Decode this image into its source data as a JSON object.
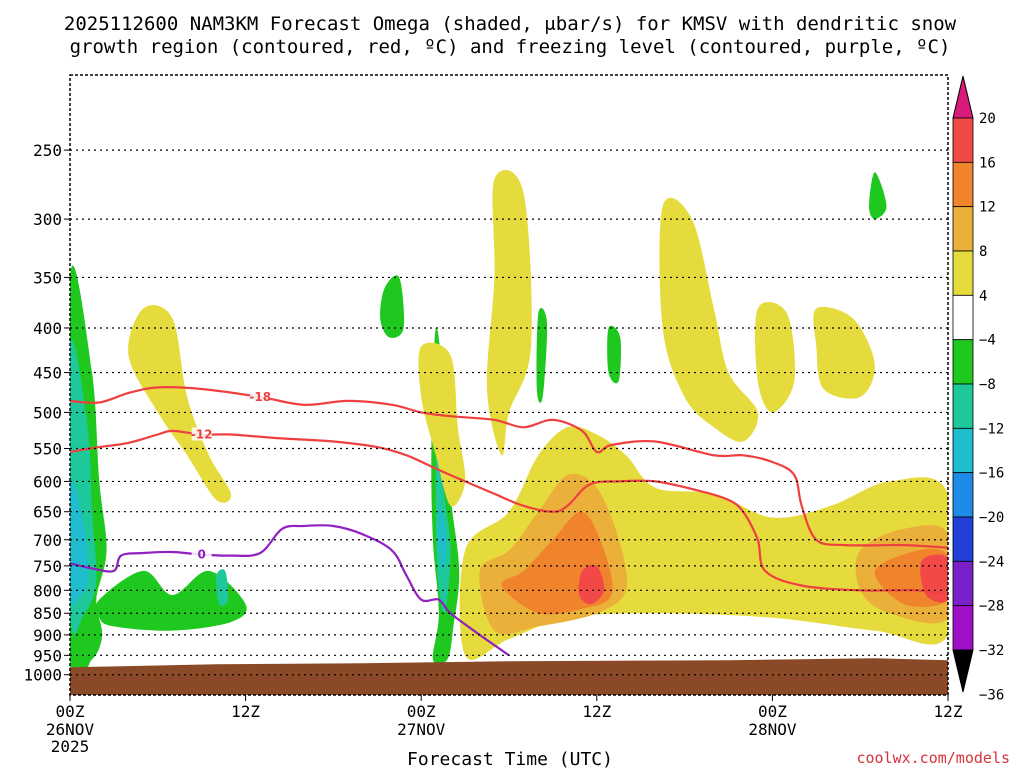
{
  "chart_data": {
    "type": "heatmap",
    "title": "2025112600 NAM3KM Forecast Omega (shaded, μbar/s) for KMSV with dendritic snow growth region (contoured, red, ºC) and freezing level (contoured, purple, ºC)",
    "title_lines": [
      "2025112600 NAM3KM Forecast Omega (shaded, μbar/s) for KMSV with dendritic snow",
      "growth region (contoured, red, ºC) and freezing level (contoured, purple, ºC)"
    ],
    "xlabel": "Forecast Time (UTC)",
    "ylabel": "",
    "credit": "coolwx.com/models",
    "x_range_hours": [
      0,
      60
    ],
    "y_range_hpa": [
      200,
      1050
    ],
    "x_ticks": [
      {
        "hour": 0,
        "label": "00Z",
        "sub": "26NOV",
        "sub2": "2025"
      },
      {
        "hour": 12,
        "label": "12Z",
        "sub": "",
        "sub2": ""
      },
      {
        "hour": 24,
        "label": "00Z",
        "sub": "27NOV",
        "sub2": ""
      },
      {
        "hour": 36,
        "label": "12Z",
        "sub": "",
        "sub2": ""
      },
      {
        "hour": 48,
        "label": "00Z",
        "sub": "28NOV",
        "sub2": ""
      },
      {
        "hour": 60,
        "label": "12Z",
        "sub": "",
        "sub2": ""
      }
    ],
    "y_ticks": [
      250,
      300,
      350,
      400,
      450,
      500,
      550,
      600,
      650,
      700,
      750,
      800,
      850,
      900,
      950,
      1000
    ],
    "colorbar": {
      "levels": [
        "20",
        "16",
        "12",
        "8",
        "4",
        "−4",
        "−8",
        "−12",
        "−16",
        "−20",
        "−24",
        "−28",
        "−32",
        "−36"
      ],
      "colors": [
        "#d81b7a",
        "#f24848",
        "#f0842c",
        "#eab03a",
        "#e6db3c",
        "#ffffff",
        "#1ec81e",
        "#1ec89a",
        "#1ebccd",
        "#1e8ce6",
        "#2040d8",
        "#7a20c8",
        "#a010c8",
        "#aaaaaa",
        "#000000"
      ]
    },
    "omega_regions": [
      {
        "name": "neg-left-outer",
        "color": "#1ec81e",
        "pts": [
          [
            0,
            350
          ],
          [
            1.5,
            450
          ],
          [
            2,
            600
          ],
          [
            2.5,
            720
          ],
          [
            1.8,
            820
          ],
          [
            2.2,
            900
          ],
          [
            1.5,
            960
          ],
          [
            0,
            960
          ]
        ]
      },
      {
        "name": "neg-left-mid",
        "color": "#1ec89a",
        "pts": [
          [
            0,
            420
          ],
          [
            1.2,
            520
          ],
          [
            1.5,
            650
          ],
          [
            1.8,
            780
          ],
          [
            1,
            850
          ],
          [
            0,
            850
          ]
        ]
      },
      {
        "name": "neg-left-inner",
        "color": "#1ebccd",
        "pts": [
          [
            0,
            600
          ],
          [
            1,
            680
          ],
          [
            1.2,
            780
          ],
          [
            0.5,
            820
          ],
          [
            0,
            810
          ]
        ]
      },
      {
        "name": "neg-low-band",
        "color": "#1ec81e",
        "pts": [
          [
            2,
            820
          ],
          [
            5,
            760
          ],
          [
            7,
            810
          ],
          [
            9.5,
            760
          ],
          [
            12,
            830
          ],
          [
            11,
            870
          ],
          [
            7,
            890
          ],
          [
            3,
            880
          ],
          [
            2,
            860
          ]
        ]
      },
      {
        "name": "neg-low-blob",
        "color": "#1ec89a",
        "pts": [
          [
            10,
            770
          ],
          [
            10.6,
            760
          ],
          [
            10.8,
            820
          ],
          [
            10.2,
            830
          ]
        ]
      },
      {
        "name": "neg-upper-blob",
        "color": "#1ec81e",
        "pts": [
          [
            21.5,
            360
          ],
          [
            22.5,
            350
          ],
          [
            22.8,
            400
          ],
          [
            21.8,
            410
          ],
          [
            21.2,
            390
          ]
        ]
      },
      {
        "name": "neg-col-27",
        "color": "#1ec81e",
        "pts": [
          [
            25,
            400
          ],
          [
            25.6,
            480
          ],
          [
            26,
            620
          ],
          [
            26.6,
            760
          ],
          [
            26.2,
            880
          ],
          [
            25.8,
            960
          ],
          [
            24.8,
            960
          ],
          [
            25.2,
            850
          ],
          [
            24.8,
            700
          ],
          [
            24.7,
            550
          ]
        ]
      },
      {
        "name": "neg-col-27-mid",
        "color": "#1ec89a",
        "pts": [
          [
            25.2,
            460
          ],
          [
            25.5,
            600
          ],
          [
            26,
            720
          ],
          [
            25.6,
            850
          ],
          [
            25.1,
            760
          ],
          [
            25,
            600
          ]
        ]
      },
      {
        "name": "neg-col-27-inner",
        "color": "#1ebccd",
        "pts": [
          [
            25.3,
            640
          ],
          [
            25.7,
            700
          ],
          [
            25.5,
            760
          ],
          [
            25.2,
            700
          ]
        ]
      },
      {
        "name": "neg-thin-32",
        "color": "#1ec81e",
        "pts": [
          [
            32,
            385
          ],
          [
            32.6,
            395
          ],
          [
            32.3,
            480
          ],
          [
            31.9,
            470
          ]
        ]
      },
      {
        "name": "neg-blob-37",
        "color": "#1ec81e",
        "pts": [
          [
            36.8,
            400
          ],
          [
            37.6,
            410
          ],
          [
            37.5,
            460
          ],
          [
            36.8,
            450
          ]
        ]
      },
      {
        "name": "neg-top-right",
        "color": "#1ec81e",
        "pts": [
          [
            55,
            265
          ],
          [
            55.8,
            290
          ],
          [
            55,
            300
          ],
          [
            54.6,
            290
          ]
        ]
      },
      {
        "name": "pos-upper-left",
        "color": "#e6db3c",
        "pts": [
          [
            5,
            380
          ],
          [
            7,
            390
          ],
          [
            8,
            480
          ],
          [
            9.5,
            560
          ],
          [
            11,
            620
          ],
          [
            10,
            630
          ],
          [
            8,
            560
          ],
          [
            6,
            500
          ],
          [
            4,
            430
          ]
        ]
      },
      {
        "name": "pos-col-27",
        "color": "#e6db3c",
        "pts": [
          [
            24,
            420
          ],
          [
            26,
            430
          ],
          [
            26.5,
            520
          ],
          [
            27,
            600
          ],
          [
            26,
            640
          ],
          [
            25,
            560
          ],
          [
            24,
            480
          ]
        ]
      },
      {
        "name": "pos-col-29",
        "color": "#e6db3c",
        "pts": [
          [
            29,
            270
          ],
          [
            31,
            280
          ],
          [
            31.5,
            420
          ],
          [
            30,
            500
          ],
          [
            29.5,
            560
          ],
          [
            28.5,
            470
          ],
          [
            29,
            350
          ]
        ]
      },
      {
        "name": "pos-col-41",
        "color": "#e6db3c",
        "pts": [
          [
            40.5,
            290
          ],
          [
            42.5,
            300
          ],
          [
            44,
            380
          ],
          [
            45,
            450
          ],
          [
            47,
            500
          ],
          [
            46,
            540
          ],
          [
            44,
            520
          ],
          [
            42,
            480
          ],
          [
            40.5,
            400
          ]
        ]
      },
      {
        "name": "pos-blob-48",
        "color": "#e6db3c",
        "pts": [
          [
            47,
            380
          ],
          [
            49,
            385
          ],
          [
            49.5,
            460
          ],
          [
            48,
            500
          ],
          [
            47,
            460
          ]
        ]
      },
      {
        "name": "pos-blob-52",
        "color": "#e6db3c",
        "pts": [
          [
            51,
            380
          ],
          [
            53.5,
            390
          ],
          [
            55,
            440
          ],
          [
            54,
            480
          ],
          [
            51.5,
            470
          ],
          [
            51,
            420
          ]
        ]
      },
      {
        "name": "pos-main-lower",
        "color": "#e6db3c",
        "pts": [
          [
            27,
            720
          ],
          [
            30,
            650
          ],
          [
            32,
            560
          ],
          [
            34,
            520
          ],
          [
            36,
            530
          ],
          [
            38,
            560
          ],
          [
            40,
            610
          ],
          [
            44,
            620
          ],
          [
            48,
            660
          ],
          [
            52,
            640
          ],
          [
            56,
            600
          ],
          [
            60,
            620
          ],
          [
            60,
            900
          ],
          [
            55,
            890
          ],
          [
            48,
            860
          ],
          [
            40,
            850
          ],
          [
            34,
            860
          ],
          [
            30,
            910
          ],
          [
            27,
            950
          ]
        ]
      },
      {
        "name": "pos-main-8",
        "color": "#eab03a",
        "pts": [
          [
            28,
            760
          ],
          [
            30,
            720
          ],
          [
            32,
            650
          ],
          [
            34,
            590
          ],
          [
            36,
            610
          ],
          [
            37.5,
            700
          ],
          [
            38,
            800
          ],
          [
            36,
            850
          ],
          [
            32,
            880
          ],
          [
            29,
            890
          ]
        ]
      },
      {
        "name": "pos-main-12",
        "color": "#f0842c",
        "pts": [
          [
            29.5,
            790
          ],
          [
            31,
            760
          ],
          [
            33,
            700
          ],
          [
            35,
            650
          ],
          [
            36.5,
            720
          ],
          [
            37,
            810
          ],
          [
            35,
            840
          ],
          [
            32,
            850
          ]
        ]
      },
      {
        "name": "pos-core-16",
        "color": "#f24848",
        "pts": [
          [
            35,
            760
          ],
          [
            36,
            750
          ],
          [
            36.5,
            800
          ],
          [
            35.6,
            830
          ],
          [
            34.8,
            810
          ]
        ]
      },
      {
        "name": "pos-right-8",
        "color": "#eab03a",
        "pts": [
          [
            54,
            720
          ],
          [
            57,
            680
          ],
          [
            60,
            690
          ],
          [
            60,
            860
          ],
          [
            56,
            850
          ],
          [
            54,
            800
          ]
        ]
      },
      {
        "name": "pos-right-12",
        "color": "#f0842c",
        "pts": [
          [
            55,
            760
          ],
          [
            58,
            720
          ],
          [
            60,
            730
          ],
          [
            60,
            820
          ],
          [
            57,
            830
          ]
        ]
      },
      {
        "name": "pos-right-16",
        "color": "#f24848",
        "pts": [
          [
            58.2,
            740
          ],
          [
            60,
            735
          ],
          [
            60,
            820
          ],
          [
            58.5,
            810
          ]
        ]
      },
      {
        "name": "pos-band-44",
        "color": "#e6db3c",
        "pts": [
          [
            42,
            700
          ],
          [
            48,
            690
          ],
          [
            52,
            720
          ],
          [
            50,
            760
          ],
          [
            44,
            760
          ]
        ]
      }
    ],
    "contours": [
      {
        "name": "isotherm-minus-18",
        "level": "-18",
        "color": "#ee4040",
        "label_at_index": 5,
        "pts": [
          [
            0,
            485
          ],
          [
            2,
            487
          ],
          [
            4,
            475
          ],
          [
            6,
            468
          ],
          [
            9,
            470
          ],
          [
            13,
            480
          ],
          [
            16,
            490
          ],
          [
            19,
            485
          ],
          [
            22,
            490
          ],
          [
            24,
            500
          ],
          [
            26,
            505
          ],
          [
            29,
            510
          ],
          [
            31,
            520
          ],
          [
            33,
            510
          ],
          [
            35,
            525
          ],
          [
            36,
            555
          ],
          [
            37,
            545
          ],
          [
            40,
            540
          ],
          [
            44,
            560
          ],
          [
            46,
            560
          ],
          [
            48,
            570
          ],
          [
            49.5,
            590
          ],
          [
            50,
            640
          ],
          [
            51,
            700
          ],
          [
            53,
            710
          ],
          [
            57,
            710
          ],
          [
            60,
            715
          ]
        ]
      },
      {
        "name": "isotherm-minus-12",
        "level": "-12",
        "color": "#ee4040",
        "label_at_index": 5,
        "pts": [
          [
            0,
            555
          ],
          [
            2,
            548
          ],
          [
            4,
            542
          ],
          [
            6,
            530
          ],
          [
            7,
            525
          ],
          [
            9,
            530
          ],
          [
            11,
            530
          ],
          [
            14,
            535
          ],
          [
            18,
            540
          ],
          [
            21,
            548
          ],
          [
            23,
            560
          ],
          [
            25,
            580
          ],
          [
            27,
            600
          ],
          [
            29,
            620
          ],
          [
            31,
            640
          ],
          [
            33,
            650
          ],
          [
            34,
            640
          ],
          [
            35.5,
            605
          ],
          [
            37.5,
            600
          ],
          [
            40,
            600
          ],
          [
            43,
            615
          ],
          [
            45,
            630
          ],
          [
            46,
            650
          ],
          [
            47,
            700
          ],
          [
            47.5,
            760
          ],
          [
            50,
            790
          ],
          [
            54,
            800
          ],
          [
            58,
            800
          ],
          [
            60,
            810
          ]
        ]
      },
      {
        "name": "freezing-level-0",
        "level": "0",
        "color": "#9020c0",
        "label_at_index": 6,
        "pts": [
          [
            0,
            745
          ],
          [
            1.5,
            755
          ],
          [
            3,
            760
          ],
          [
            3.5,
            730
          ],
          [
            5,
            725
          ],
          [
            7,
            723
          ],
          [
            9,
            728
          ],
          [
            11,
            730
          ],
          [
            13,
            725
          ],
          [
            14.5,
            680
          ],
          [
            16,
            675
          ],
          [
            18,
            675
          ],
          [
            20,
            690
          ],
          [
            22,
            720
          ],
          [
            23,
            770
          ],
          [
            24,
            820
          ],
          [
            25.2,
            820
          ],
          [
            26,
            850
          ],
          [
            28,
            900
          ],
          [
            30,
            950
          ]
        ]
      }
    ],
    "ground": {
      "color": "#8b4a27",
      "top_hpa": 965
    }
  }
}
